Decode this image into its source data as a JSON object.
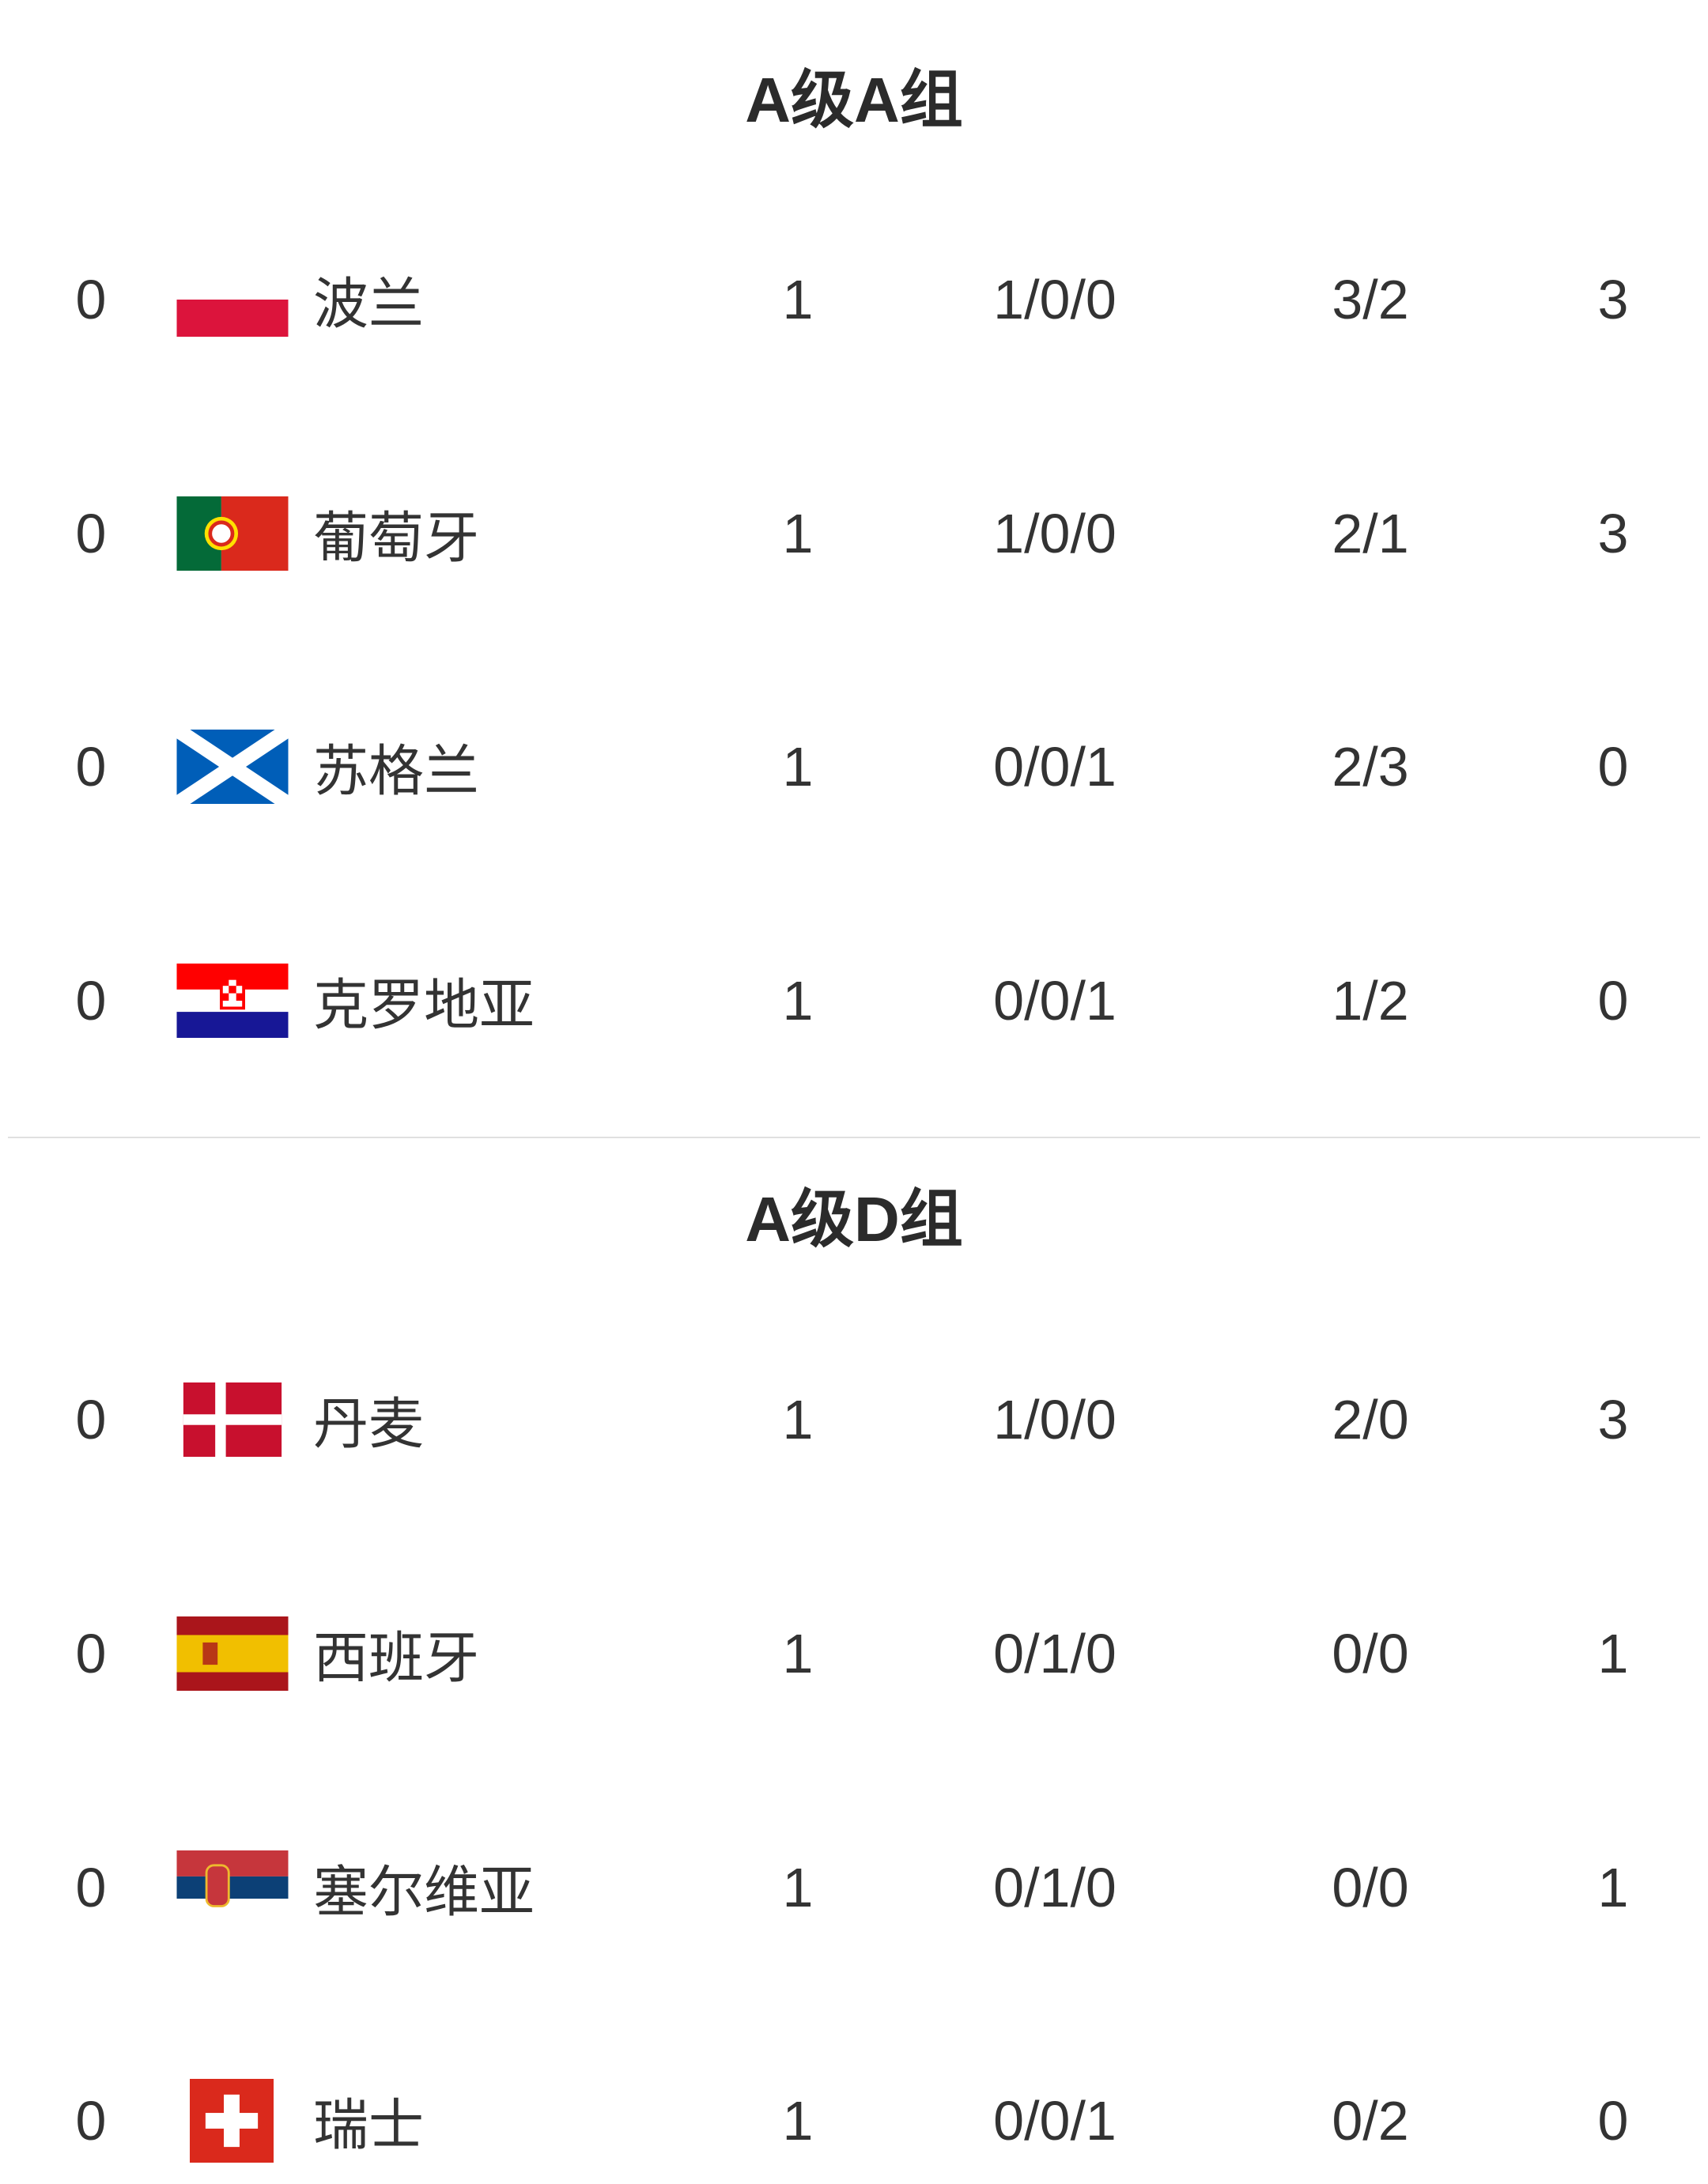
{
  "groups": [
    {
      "title": "A级A组",
      "rows": [
        {
          "rank": "0",
          "flag": "poland-flag",
          "name": "波兰",
          "played": "1",
          "wdl": "1/0/0",
          "goals": "3/2",
          "points": "3"
        },
        {
          "rank": "0",
          "flag": "portugal-flag",
          "name": "葡萄牙",
          "played": "1",
          "wdl": "1/0/0",
          "goals": "2/1",
          "points": "3"
        },
        {
          "rank": "0",
          "flag": "scotland-flag",
          "name": "苏格兰",
          "played": "1",
          "wdl": "0/0/1",
          "goals": "2/3",
          "points": "0"
        },
        {
          "rank": "0",
          "flag": "croatia-flag",
          "name": "克罗地亚",
          "played": "1",
          "wdl": "0/0/1",
          "goals": "1/2",
          "points": "0"
        }
      ]
    },
    {
      "title": "A级D组",
      "rows": [
        {
          "rank": "0",
          "flag": "denmark-flag",
          "name": "丹麦",
          "played": "1",
          "wdl": "1/0/0",
          "goals": "2/0",
          "points": "3"
        },
        {
          "rank": "0",
          "flag": "spain-flag",
          "name": "西班牙",
          "played": "1",
          "wdl": "0/1/0",
          "goals": "0/0",
          "points": "1"
        },
        {
          "rank": "0",
          "flag": "serbia-flag",
          "name": "塞尔维亚",
          "played": "1",
          "wdl": "0/1/0",
          "goals": "0/0",
          "points": "1"
        },
        {
          "rank": "0",
          "flag": "switzerland-flag",
          "name": "瑞士",
          "played": "1",
          "wdl": "0/0/1",
          "goals": "0/2",
          "points": "0"
        }
      ]
    }
  ]
}
